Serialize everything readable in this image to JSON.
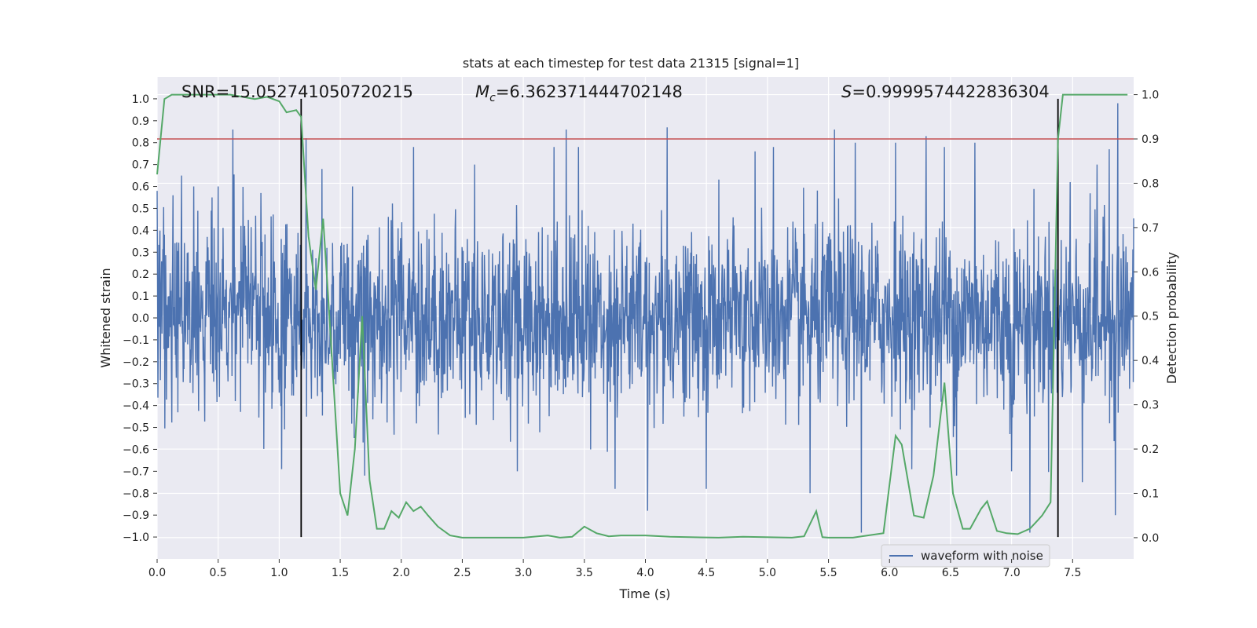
{
  "chart_data": {
    "type": "line",
    "title": "stats at each timestep for test data 21315 [signal=1]",
    "xlabel": "Time (s)",
    "ylabel": "Whitened strain",
    "y2label": "Detection probability",
    "xlim": [
      0.0,
      8.0
    ],
    "ylim": [
      -1.1,
      1.1
    ],
    "y2lim": [
      -0.048,
      1.04
    ],
    "xticks": [
      "0.0",
      "0.5",
      "1.0",
      "1.5",
      "2.0",
      "2.5",
      "3.0",
      "3.5",
      "4.0",
      "4.5",
      "5.0",
      "5.5",
      "6.0",
      "6.5",
      "7.0",
      "7.5"
    ],
    "yticks": [
      "1.0",
      "0.9",
      "0.8",
      "0.7",
      "0.6",
      "0.5",
      "0.4",
      "0.3",
      "0.2",
      "0.1",
      "0.0",
      "−0.1",
      "−0.2",
      "−0.3",
      "−0.4",
      "−0.5",
      "−0.6",
      "−0.7",
      "−0.8",
      "−0.9",
      "−1.0"
    ],
    "y2ticks": [
      "1.0",
      "0.9",
      "0.8",
      "0.7",
      "0.6",
      "0.5",
      "0.4",
      "0.3",
      "0.2",
      "0.1",
      "0.0"
    ],
    "annotations": {
      "snr": "SNR=15.052741050720215",
      "mc_symbol": "M",
      "mc_sub": "c",
      "mc_value": "=6.362371444702148",
      "s_symbol": "S",
      "s_value": "=0.9999574422836304"
    },
    "legend": {
      "entries": [
        "waveform with noise"
      ],
      "location": "lower-right"
    },
    "colors": {
      "waveform": "#4c72b0",
      "probability": "#55a868",
      "threshold": "#c44e52",
      "vlines": "#000000",
      "background": "#eaeaf2",
      "grid": "#ffffff"
    },
    "threshold_probability": 0.9,
    "vlines_time": [
      1.18,
      7.38
    ],
    "waveform": {
      "description_note": "dense noise, approx envelope values",
      "t_range": [
        0.0,
        8.0
      ],
      "typical_amplitude": 0.4,
      "peaks": [
        [
          0.06,
          0.38
        ],
        [
          0.13,
          0.56
        ],
        [
          0.2,
          0.65
        ],
        [
          0.3,
          0.6
        ],
        [
          0.45,
          0.55
        ],
        [
          0.5,
          0.6
        ],
        [
          0.62,
          0.86
        ],
        [
          0.85,
          0.57
        ],
        [
          1.02,
          -0.69
        ],
        [
          1.22,
          0.82
        ],
        [
          1.35,
          0.68
        ],
        [
          1.6,
          0.6
        ],
        [
          1.7,
          -0.72
        ],
        [
          2.1,
          0.78
        ],
        [
          2.6,
          0.7
        ],
        [
          2.95,
          -0.7
        ],
        [
          3.25,
          0.78
        ],
        [
          3.35,
          0.86
        ],
        [
          3.45,
          0.78
        ],
        [
          3.55,
          -0.6
        ],
        [
          3.75,
          -0.78
        ],
        [
          4.02,
          -0.88
        ],
        [
          4.18,
          0.87
        ],
        [
          4.5,
          -0.78
        ],
        [
          4.9,
          0.76
        ],
        [
          5.05,
          0.78
        ],
        [
          5.35,
          -0.8
        ],
        [
          5.55,
          0.86
        ],
        [
          5.72,
          0.8
        ],
        [
          5.77,
          -0.98
        ],
        [
          6.05,
          0.8
        ],
        [
          6.3,
          0.83
        ],
        [
          6.45,
          0.78
        ],
        [
          6.55,
          -0.72
        ],
        [
          6.7,
          0.8
        ],
        [
          7.0,
          -0.7
        ],
        [
          7.15,
          -0.98
        ],
        [
          7.48,
          0.62
        ],
        [
          7.58,
          -0.75
        ],
        [
          7.7,
          0.7
        ],
        [
          7.8,
          0.77
        ],
        [
          7.87,
          0.98
        ],
        [
          7.85,
          -0.9
        ]
      ]
    },
    "probability": {
      "t": [
        0.0,
        0.06,
        0.12,
        0.2,
        0.3,
        0.4,
        0.5,
        0.6,
        0.7,
        0.8,
        0.9,
        1.0,
        1.06,
        1.14,
        1.18,
        1.24,
        1.3,
        1.36,
        1.4,
        1.5,
        1.56,
        1.62,
        1.68,
        1.74,
        1.8,
        1.86,
        1.92,
        1.98,
        2.04,
        2.1,
        2.16,
        2.22,
        2.3,
        2.4,
        2.5,
        2.6,
        3.0,
        3.2,
        3.3,
        3.4,
        3.5,
        3.6,
        3.7,
        3.8,
        3.9,
        4.0,
        4.2,
        4.6,
        4.8,
        5.2,
        5.3,
        5.4,
        5.45,
        5.5,
        5.6,
        5.7,
        5.95,
        6.05,
        6.1,
        6.2,
        6.28,
        6.36,
        6.45,
        6.52,
        6.6,
        6.66,
        6.75,
        6.8,
        6.88,
        6.96,
        7.05,
        7.15,
        7.2,
        7.25,
        7.32,
        7.38,
        7.42,
        7.5,
        7.6,
        7.7,
        7.8,
        7.9,
        7.95
      ],
      "p": [
        0.82,
        0.99,
        1.0,
        1.0,
        1.0,
        1.0,
        1.0,
        1.0,
        0.995,
        0.99,
        0.995,
        0.985,
        0.96,
        0.965,
        0.95,
        0.68,
        0.56,
        0.72,
        0.55,
        0.1,
        0.05,
        0.2,
        0.5,
        0.13,
        0.02,
        0.02,
        0.06,
        0.045,
        0.08,
        0.06,
        0.07,
        0.05,
        0.025,
        0.005,
        0.0,
        0.0,
        0.0,
        0.005,
        0.0,
        0.002,
        0.025,
        0.01,
        0.003,
        0.005,
        0.005,
        0.005,
        0.002,
        0.0,
        0.002,
        0.0,
        0.003,
        0.06,
        0.001,
        0.0,
        0.0,
        0.0,
        0.01,
        0.23,
        0.21,
        0.05,
        0.045,
        0.14,
        0.35,
        0.1,
        0.02,
        0.02,
        0.065,
        0.082,
        0.015,
        0.01,
        0.008,
        0.02,
        0.035,
        0.05,
        0.08,
        0.9,
        1.0,
        1.0,
        1.0,
        1.0,
        1.0,
        1.0,
        1.0
      ]
    }
  }
}
